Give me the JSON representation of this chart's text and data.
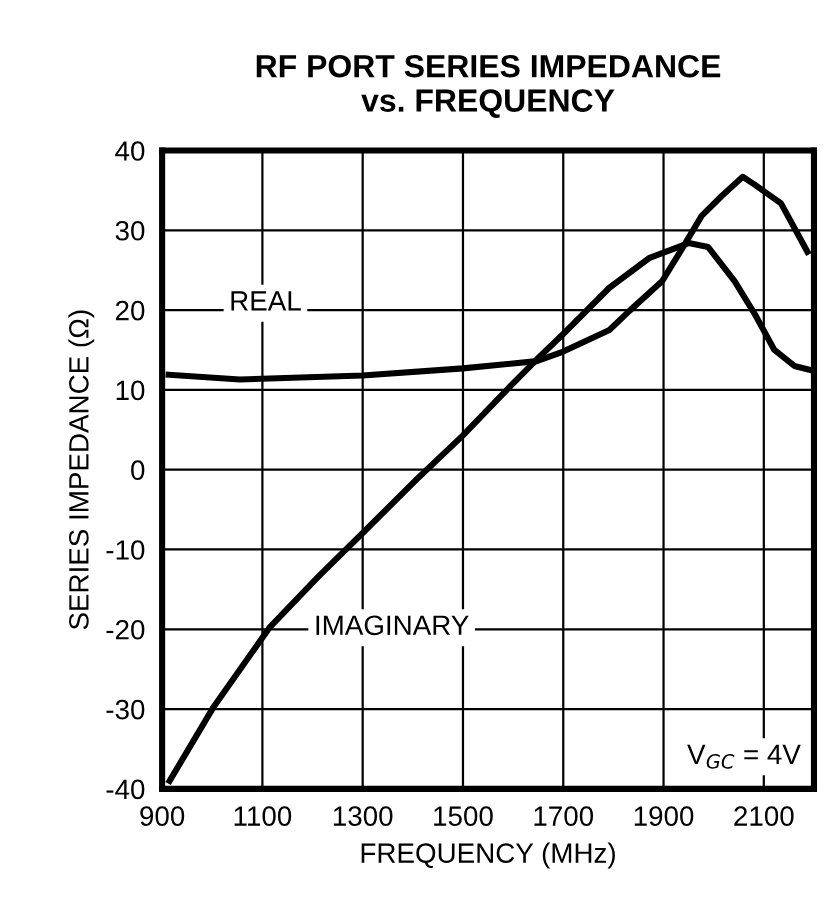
{
  "chart_data": {
    "type": "line",
    "title": "RF PORT SERIES IMPEDANCE\nvs. FREQUENCY",
    "xlabel": "FREQUENCY (MHz)",
    "ylabel": "SERIES IMPEDANCE (Ω)",
    "xlim": [
      900,
      2200
    ],
    "xticks": [
      900,
      1100,
      1300,
      1500,
      1700,
      1900,
      2100
    ],
    "ylim": [
      -40,
      40
    ],
    "yticks": [
      -40,
      -30,
      -20,
      -10,
      0,
      10,
      20,
      30,
      40
    ],
    "grid": true,
    "legend": false,
    "marker": "none",
    "line_style": "solid",
    "series": [
      {
        "name": "REAL",
        "color": "#000000",
        "x": [
          913,
          1055,
          1300,
          1500,
          1647,
          1700,
          1792,
          1832,
          1897,
          1937,
          1976,
          2016,
          2058,
          2082,
          2134,
          2187
        ],
        "values": [
          11.9,
          11.3,
          11.8,
          12.7,
          13.6,
          14.8,
          17.5,
          19.9,
          23.6,
          27.7,
          31.8,
          34.3,
          36.7,
          35.7,
          33.4,
          27.3
        ]
      },
      {
        "name": "IMAGINARY",
        "color": "#000000",
        "x": [
          915,
          1003,
          1114,
          1213,
          1299,
          1411,
          1500,
          1595,
          1647,
          1700,
          1792,
          1871,
          1950,
          1989,
          2042,
          2082,
          2121,
          2161,
          2193
        ],
        "values": [
          -39,
          -29.7,
          -19.8,
          -13.3,
          -8,
          -1,
          4.3,
          10.5,
          13.8,
          17,
          22.8,
          26.5,
          28.4,
          27.9,
          23.6,
          19.5,
          15,
          13,
          12.5
        ]
      }
    ],
    "annotations": [
      "V$_{GC}$ = 4V"
    ]
  }
}
